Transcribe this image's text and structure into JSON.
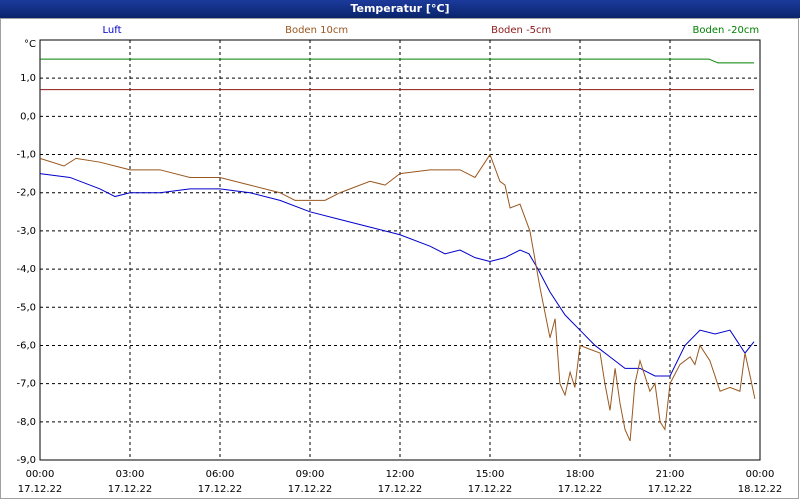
{
  "chart_data": {
    "type": "line",
    "title": "Temperatur [°C]",
    "y_unit": "°C",
    "xlim": [
      0,
      24
    ],
    "ylim": [
      -9,
      2
    ],
    "grid": true,
    "xticks": [
      {
        "value": 0,
        "label": "00:00"
      },
      {
        "value": 3,
        "label": "03:00"
      },
      {
        "value": 6,
        "label": "06:00"
      },
      {
        "value": 9,
        "label": "09:00"
      },
      {
        "value": 12,
        "label": "12:00"
      },
      {
        "value": 15,
        "label": "15:00"
      },
      {
        "value": 18,
        "label": "18:00"
      },
      {
        "value": 21,
        "label": "21:00"
      },
      {
        "value": 24,
        "label": "00:00"
      }
    ],
    "xtick_dates": [
      "17.12.22",
      "17.12.22",
      "17.12.22",
      "17.12.22",
      "17.12.22",
      "17.12.22",
      "17.12.22",
      "17.12.22",
      "18.12.22"
    ],
    "yticks": [
      {
        "value": 1,
        "label": "1,0"
      },
      {
        "value": 0,
        "label": "0,0"
      },
      {
        "value": -1,
        "label": "-1,0"
      },
      {
        "value": -2,
        "label": "-2,0"
      },
      {
        "value": -3,
        "label": "-3,0"
      },
      {
        "value": -4,
        "label": "-4,0"
      },
      {
        "value": -5,
        "label": "-5,0"
      },
      {
        "value": -6,
        "label": "-6,0"
      },
      {
        "value": -7,
        "label": "-7,0"
      },
      {
        "value": -8,
        "label": "-8,0"
      },
      {
        "value": -9,
        "label": "-9,0"
      }
    ],
    "series": [
      {
        "name": "Luft",
        "color": "#0000cc",
        "x": [
          0,
          1,
          2,
          2.5,
          3,
          4,
          5,
          6,
          7,
          8,
          9,
          10,
          11,
          12,
          13,
          13.5,
          14,
          14.5,
          15,
          15.5,
          16,
          16.3,
          16.6,
          17,
          17.5,
          18,
          18.5,
          19,
          19.5,
          20,
          20.5,
          21,
          21.5,
          22,
          22.5,
          23,
          23.5,
          23.8
        ],
        "values": [
          -1.5,
          -1.6,
          -1.9,
          -2.1,
          -2.0,
          -2.0,
          -1.9,
          -1.9,
          -2.0,
          -2.2,
          -2.5,
          -2.7,
          -2.9,
          -3.1,
          -3.4,
          -3.6,
          -3.5,
          -3.7,
          -3.8,
          -3.7,
          -3.5,
          -3.6,
          -4.0,
          -4.6,
          -5.2,
          -5.6,
          -6.0,
          -6.3,
          -6.6,
          -6.6,
          -6.8,
          -6.8,
          -6.0,
          -5.6,
          -5.7,
          -5.6,
          -6.2,
          -5.9
        ]
      },
      {
        "name": "Boden 10cm",
        "color": "#99581f",
        "x": [
          0,
          0.8,
          1.2,
          2,
          3,
          4,
          5,
          6,
          7,
          8,
          8.5,
          9.5,
          10,
          11,
          11.5,
          12,
          13,
          14,
          14.5,
          15,
          15.33,
          15.5,
          15.67,
          16,
          16.33,
          16.67,
          17,
          17.17,
          17.33,
          17.5,
          17.67,
          17.83,
          18,
          18.33,
          18.67,
          18.83,
          19,
          19.17,
          19.33,
          19.5,
          19.67,
          19.83,
          20,
          20.33,
          20.5,
          20.67,
          20.83,
          21,
          21.33,
          21.67,
          21.83,
          22,
          22.33,
          22.67,
          23,
          23.33,
          23.5,
          23.67,
          23.83
        ],
        "values": [
          -1.1,
          -1.3,
          -1.1,
          -1.2,
          -1.4,
          -1.4,
          -1.6,
          -1.6,
          -1.8,
          -2.0,
          -2.2,
          -2.2,
          -2.0,
          -1.7,
          -1.8,
          -1.5,
          -1.4,
          -1.4,
          -1.6,
          -1.0,
          -1.7,
          -1.8,
          -2.4,
          -2.3,
          -3.0,
          -4.5,
          -5.8,
          -5.3,
          -7.0,
          -7.3,
          -6.7,
          -7.1,
          -6.0,
          -6.1,
          -6.2,
          -7.0,
          -7.7,
          -6.6,
          -7.5,
          -8.2,
          -8.5,
          -7.0,
          -6.4,
          -7.2,
          -7.0,
          -8.0,
          -8.2,
          -7.0,
          -6.5,
          -6.3,
          -6.5,
          -6.0,
          -6.4,
          -7.2,
          -7.1,
          -7.2,
          -6.2,
          -6.8,
          -7.4
        ]
      },
      {
        "name": "Boden -5cm",
        "color": "#8b1a1a",
        "x": [
          0,
          23.8
        ],
        "values": [
          0.7,
          0.7
        ]
      },
      {
        "name": "Boden -20cm",
        "color": "#008000",
        "x": [
          0,
          22.3,
          22.6,
          23.8
        ],
        "values": [
          1.5,
          1.5,
          1.4,
          1.4
        ]
      }
    ]
  }
}
